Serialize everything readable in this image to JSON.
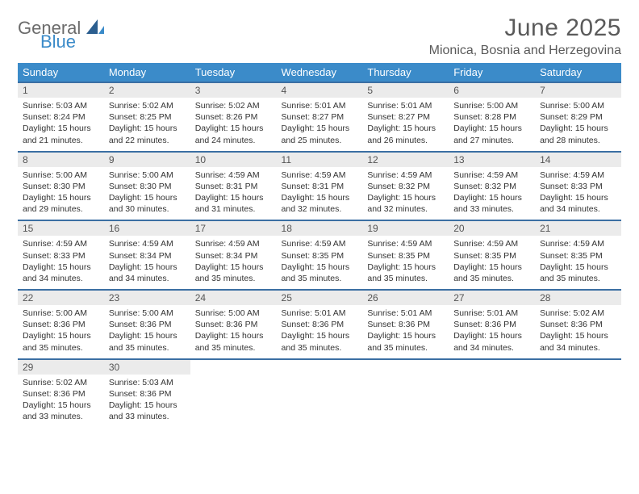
{
  "brand": {
    "general": "General",
    "blue": "Blue"
  },
  "title": "June 2025",
  "location": "Mionica, Bosnia and Herzegovina",
  "colors": {
    "header_bg": "#3b8bc9",
    "header_text": "#ffffff",
    "week_border": "#3b6fa3",
    "daynum_bg": "#ebebeb",
    "text": "#333333",
    "logo_gray": "#6b6b6b",
    "logo_blue": "#3b8bc9",
    "background": "#ffffff"
  },
  "dow": [
    "Sunday",
    "Monday",
    "Tuesday",
    "Wednesday",
    "Thursday",
    "Friday",
    "Saturday"
  ],
  "weeks": [
    [
      {
        "n": "1",
        "sr": "Sunrise: 5:03 AM",
        "ss": "Sunset: 8:24 PM",
        "d1": "Daylight: 15 hours",
        "d2": "and 21 minutes."
      },
      {
        "n": "2",
        "sr": "Sunrise: 5:02 AM",
        "ss": "Sunset: 8:25 PM",
        "d1": "Daylight: 15 hours",
        "d2": "and 22 minutes."
      },
      {
        "n": "3",
        "sr": "Sunrise: 5:02 AM",
        "ss": "Sunset: 8:26 PM",
        "d1": "Daylight: 15 hours",
        "d2": "and 24 minutes."
      },
      {
        "n": "4",
        "sr": "Sunrise: 5:01 AM",
        "ss": "Sunset: 8:27 PM",
        "d1": "Daylight: 15 hours",
        "d2": "and 25 minutes."
      },
      {
        "n": "5",
        "sr": "Sunrise: 5:01 AM",
        "ss": "Sunset: 8:27 PM",
        "d1": "Daylight: 15 hours",
        "d2": "and 26 minutes."
      },
      {
        "n": "6",
        "sr": "Sunrise: 5:00 AM",
        "ss": "Sunset: 8:28 PM",
        "d1": "Daylight: 15 hours",
        "d2": "and 27 minutes."
      },
      {
        "n": "7",
        "sr": "Sunrise: 5:00 AM",
        "ss": "Sunset: 8:29 PM",
        "d1": "Daylight: 15 hours",
        "d2": "and 28 minutes."
      }
    ],
    [
      {
        "n": "8",
        "sr": "Sunrise: 5:00 AM",
        "ss": "Sunset: 8:30 PM",
        "d1": "Daylight: 15 hours",
        "d2": "and 29 minutes."
      },
      {
        "n": "9",
        "sr": "Sunrise: 5:00 AM",
        "ss": "Sunset: 8:30 PM",
        "d1": "Daylight: 15 hours",
        "d2": "and 30 minutes."
      },
      {
        "n": "10",
        "sr": "Sunrise: 4:59 AM",
        "ss": "Sunset: 8:31 PM",
        "d1": "Daylight: 15 hours",
        "d2": "and 31 minutes."
      },
      {
        "n": "11",
        "sr": "Sunrise: 4:59 AM",
        "ss": "Sunset: 8:31 PM",
        "d1": "Daylight: 15 hours",
        "d2": "and 32 minutes."
      },
      {
        "n": "12",
        "sr": "Sunrise: 4:59 AM",
        "ss": "Sunset: 8:32 PM",
        "d1": "Daylight: 15 hours",
        "d2": "and 32 minutes."
      },
      {
        "n": "13",
        "sr": "Sunrise: 4:59 AM",
        "ss": "Sunset: 8:32 PM",
        "d1": "Daylight: 15 hours",
        "d2": "and 33 minutes."
      },
      {
        "n": "14",
        "sr": "Sunrise: 4:59 AM",
        "ss": "Sunset: 8:33 PM",
        "d1": "Daylight: 15 hours",
        "d2": "and 34 minutes."
      }
    ],
    [
      {
        "n": "15",
        "sr": "Sunrise: 4:59 AM",
        "ss": "Sunset: 8:33 PM",
        "d1": "Daylight: 15 hours",
        "d2": "and 34 minutes."
      },
      {
        "n": "16",
        "sr": "Sunrise: 4:59 AM",
        "ss": "Sunset: 8:34 PM",
        "d1": "Daylight: 15 hours",
        "d2": "and 34 minutes."
      },
      {
        "n": "17",
        "sr": "Sunrise: 4:59 AM",
        "ss": "Sunset: 8:34 PM",
        "d1": "Daylight: 15 hours",
        "d2": "and 35 minutes."
      },
      {
        "n": "18",
        "sr": "Sunrise: 4:59 AM",
        "ss": "Sunset: 8:35 PM",
        "d1": "Daylight: 15 hours",
        "d2": "and 35 minutes."
      },
      {
        "n": "19",
        "sr": "Sunrise: 4:59 AM",
        "ss": "Sunset: 8:35 PM",
        "d1": "Daylight: 15 hours",
        "d2": "and 35 minutes."
      },
      {
        "n": "20",
        "sr": "Sunrise: 4:59 AM",
        "ss": "Sunset: 8:35 PM",
        "d1": "Daylight: 15 hours",
        "d2": "and 35 minutes."
      },
      {
        "n": "21",
        "sr": "Sunrise: 4:59 AM",
        "ss": "Sunset: 8:35 PM",
        "d1": "Daylight: 15 hours",
        "d2": "and 35 minutes."
      }
    ],
    [
      {
        "n": "22",
        "sr": "Sunrise: 5:00 AM",
        "ss": "Sunset: 8:36 PM",
        "d1": "Daylight: 15 hours",
        "d2": "and 35 minutes."
      },
      {
        "n": "23",
        "sr": "Sunrise: 5:00 AM",
        "ss": "Sunset: 8:36 PM",
        "d1": "Daylight: 15 hours",
        "d2": "and 35 minutes."
      },
      {
        "n": "24",
        "sr": "Sunrise: 5:00 AM",
        "ss": "Sunset: 8:36 PM",
        "d1": "Daylight: 15 hours",
        "d2": "and 35 minutes."
      },
      {
        "n": "25",
        "sr": "Sunrise: 5:01 AM",
        "ss": "Sunset: 8:36 PM",
        "d1": "Daylight: 15 hours",
        "d2": "and 35 minutes."
      },
      {
        "n": "26",
        "sr": "Sunrise: 5:01 AM",
        "ss": "Sunset: 8:36 PM",
        "d1": "Daylight: 15 hours",
        "d2": "and 35 minutes."
      },
      {
        "n": "27",
        "sr": "Sunrise: 5:01 AM",
        "ss": "Sunset: 8:36 PM",
        "d1": "Daylight: 15 hours",
        "d2": "and 34 minutes."
      },
      {
        "n": "28",
        "sr": "Sunrise: 5:02 AM",
        "ss": "Sunset: 8:36 PM",
        "d1": "Daylight: 15 hours",
        "d2": "and 34 minutes."
      }
    ],
    [
      {
        "n": "29",
        "sr": "Sunrise: 5:02 AM",
        "ss": "Sunset: 8:36 PM",
        "d1": "Daylight: 15 hours",
        "d2": "and 33 minutes."
      },
      {
        "n": "30",
        "sr": "Sunrise: 5:03 AM",
        "ss": "Sunset: 8:36 PM",
        "d1": "Daylight: 15 hours",
        "d2": "and 33 minutes."
      },
      null,
      null,
      null,
      null,
      null
    ]
  ]
}
